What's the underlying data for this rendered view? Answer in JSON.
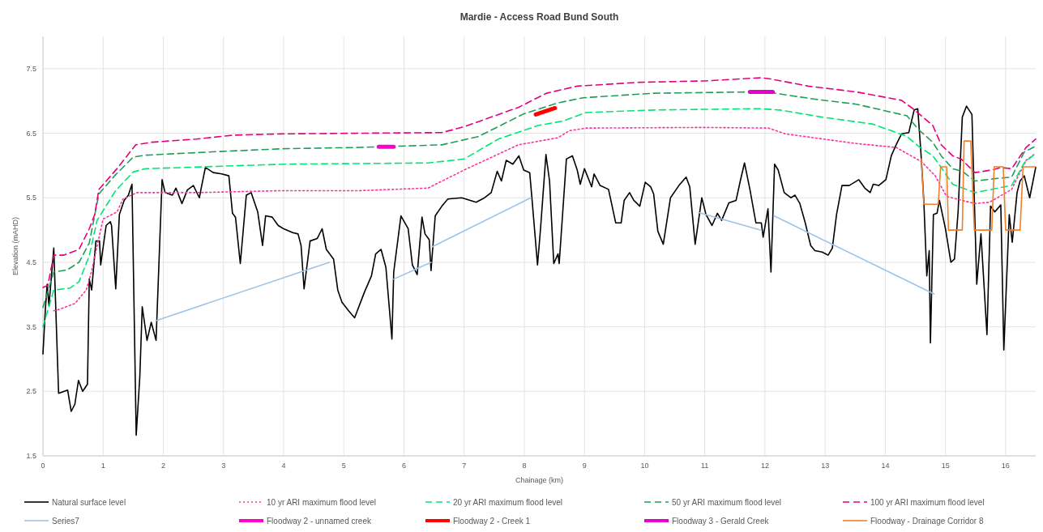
{
  "chart_data": {
    "type": "line",
    "title": "Mardie - Access Road Bund South",
    "xlabel": "Chainage (km)",
    "ylabel": "Elevation (mAHD)",
    "xlim": [
      0,
      16.5
    ],
    "xticks": [
      0,
      1,
      2,
      3,
      4,
      5,
      6,
      7,
      8,
      9,
      10,
      11,
      12,
      13,
      14,
      15,
      16
    ],
    "ylim": [
      1.5,
      8
    ],
    "yticks": [
      1.5,
      2.5,
      3.5,
      4.5,
      5.5,
      6.5,
      7.5
    ],
    "grid": true,
    "legend": "bottom",
    "series": [
      {
        "name": "Natural surface level",
        "color": "#000000",
        "line_style": "solid",
        "x": [
          0,
          0.04,
          0.07,
          0.1,
          0.18,
          0.26,
          0.41,
          0.47,
          0.53,
          0.59,
          0.66,
          0.74,
          0.77,
          0.81,
          0.88,
          0.94,
          0.96,
          1.05,
          1.12,
          1.14,
          1.21,
          1.27,
          1.35,
          1.42,
          1.48,
          1.55,
          1.61,
          1.65,
          1.73,
          1.8,
          1.88,
          1.98,
          2.03,
          2.15,
          2.21,
          2.31,
          2.4,
          2.5,
          2.6,
          2.63,
          2.7,
          2.83,
          2.97,
          3.09,
          3.15,
          3.2,
          3.28,
          3.38,
          3.46,
          3.57,
          3.65,
          3.7,
          3.81,
          3.91,
          4.0,
          4.15,
          4.24,
          4.29,
          4.34,
          4.44,
          4.56,
          4.64,
          4.71,
          4.83,
          4.9,
          4.97,
          5.08,
          5.18,
          5.34,
          5.46,
          5.53,
          5.62,
          5.7,
          5.8,
          5.83,
          5.95,
          6.07,
          6.14,
          6.22,
          6.3,
          6.35,
          6.42,
          6.45,
          6.52,
          6.63,
          6.73,
          6.96,
          7.2,
          7.34,
          7.45,
          7.55,
          7.62,
          7.7,
          7.81,
          7.91,
          7.99,
          8.09,
          8.13,
          8.22,
          8.27,
          8.36,
          8.42,
          8.49,
          8.56,
          8.58,
          8.7,
          8.8,
          8.88,
          8.93,
          9.0,
          9.12,
          9.16,
          9.26,
          9.4,
          9.52,
          9.61,
          9.66,
          9.75,
          9.82,
          9.92,
          10.01,
          10.1,
          10.15,
          10.22,
          10.31,
          10.43,
          10.57,
          10.69,
          10.75,
          10.84,
          10.95,
          11.02,
          11.12,
          11.21,
          11.28,
          11.4,
          11.52,
          11.59,
          11.66,
          11.75,
          11.85,
          11.94,
          11.97,
          12.05,
          12.1,
          12.16,
          12.22,
          12.32,
          12.43,
          12.5,
          12.58,
          12.67,
          12.76,
          12.83,
          12.95,
          13.05,
          13.12,
          13.19,
          13.28,
          13.4,
          13.56,
          13.66,
          13.75,
          13.8,
          13.89,
          14.01,
          14.1,
          14.18,
          14.27,
          14.39,
          14.48,
          14.54,
          14.59,
          14.64,
          14.69,
          14.73,
          14.75,
          14.8,
          14.86,
          14.9,
          15.0,
          15.09,
          15.15,
          15.21,
          15.28,
          15.35,
          15.44,
          15.52,
          15.59,
          15.69,
          15.75,
          15.82,
          15.92,
          15.97,
          16.06,
          16.11,
          16.19,
          16.24,
          16.31,
          16.4,
          16.5
        ],
        "values": [
          3.08,
          3.77,
          4.16,
          3.83,
          4.72,
          2.47,
          2.52,
          2.19,
          2.3,
          2.67,
          2.5,
          2.61,
          4.24,
          4.07,
          4.83,
          4.83,
          4.46,
          5.07,
          5.13,
          5.07,
          4.09,
          5.24,
          5.46,
          5.54,
          5.71,
          1.82,
          2.73,
          3.81,
          3.29,
          3.57,
          3.29,
          5.78,
          5.58,
          5.54,
          5.65,
          5.41,
          5.62,
          5.69,
          5.5,
          5.65,
          5.97,
          5.89,
          5.87,
          5.84,
          5.26,
          5.2,
          4.48,
          5.54,
          5.58,
          5.28,
          4.76,
          5.22,
          5.2,
          5.07,
          5.02,
          4.96,
          4.94,
          4.76,
          4.09,
          4.83,
          4.87,
          5.02,
          4.7,
          4.55,
          4.07,
          3.88,
          3.75,
          3.64,
          4.03,
          4.29,
          4.63,
          4.7,
          4.42,
          3.31,
          4.35,
          5.22,
          5.02,
          4.46,
          4.31,
          5.2,
          4.94,
          4.85,
          4.37,
          5.22,
          5.37,
          5.48,
          5.5,
          5.43,
          5.5,
          5.58,
          5.91,
          5.76,
          6.08,
          6.02,
          6.15,
          5.93,
          5.89,
          5.46,
          4.46,
          5.02,
          6.17,
          5.76,
          4.48,
          4.63,
          4.48,
          6.1,
          6.15,
          5.93,
          5.71,
          5.95,
          5.67,
          5.87,
          5.69,
          5.63,
          5.11,
          5.11,
          5.46,
          5.58,
          5.46,
          5.37,
          5.74,
          5.67,
          5.56,
          4.98,
          4.78,
          5.5,
          5.69,
          5.82,
          5.67,
          4.78,
          5.5,
          5.24,
          5.07,
          5.26,
          5.15,
          5.42,
          5.46,
          5.76,
          6.04,
          5.63,
          5.11,
          5.11,
          4.89,
          5.33,
          4.35,
          6.02,
          5.93,
          5.58,
          5.5,
          5.54,
          5.41,
          5.11,
          4.76,
          4.68,
          4.66,
          4.61,
          4.72,
          5.24,
          5.69,
          5.69,
          5.78,
          5.65,
          5.58,
          5.71,
          5.69,
          5.78,
          6.15,
          6.32,
          6.49,
          6.51,
          6.86,
          6.88,
          6.23,
          5.46,
          4.29,
          4.68,
          3.25,
          5.24,
          5.26,
          5.46,
          5.02,
          4.5,
          4.55,
          5.28,
          6.75,
          6.92,
          6.79,
          4.16,
          4.94,
          3.38,
          5.37,
          5.28,
          5.39,
          3.14,
          5.24,
          4.81,
          5.58,
          5.76,
          5.84,
          5.5,
          5.97
        ]
      },
      {
        "name": "10 yr ARI maximum flood level",
        "color": "#ff3399",
        "line_style": "dotted",
        "x": [
          0.18,
          0.27,
          0.53,
          0.72,
          0.81,
          1.0,
          1.23,
          1.33,
          1.56,
          2.55,
          3.96,
          5.25,
          6.4,
          7.0,
          7.9,
          8.56,
          8.75,
          9.03,
          10.98,
          12.06,
          12.34,
          13.52,
          14.18,
          14.6,
          14.83,
          15.02,
          15.49,
          15.73,
          16.1,
          16.34,
          16.5
        ],
        "values": [
          3.75,
          3.77,
          3.86,
          4.07,
          4.37,
          5.17,
          5.28,
          5.48,
          5.58,
          5.58,
          5.61,
          5.61,
          5.65,
          5.93,
          6.32,
          6.43,
          6.54,
          6.58,
          6.59,
          6.58,
          6.49,
          6.34,
          6.28,
          6.06,
          5.84,
          5.52,
          5.41,
          5.43,
          5.63,
          6.08,
          6.19
        ]
      },
      {
        "name": "20 yr ARI maximum flood level",
        "color": "#00e676",
        "line_style": "dashed",
        "x": [
          0,
          0.18,
          0.45,
          0.6,
          0.77,
          0.9,
          1.2,
          1.5,
          1.7,
          3,
          4,
          5.25,
          6.4,
          7.0,
          7.57,
          8.23,
          8.65,
          9.02,
          10.15,
          10.98,
          11.92,
          12.25,
          12.95,
          13.8,
          14.36,
          14.55,
          14.79,
          14.93,
          15.12,
          15.49,
          15.87,
          16.1,
          16.31,
          16.5
        ],
        "values": [
          3.5,
          4.07,
          4.1,
          4.2,
          4.6,
          5.15,
          5.6,
          5.9,
          5.95,
          5.99,
          6.02,
          6.03,
          6.04,
          6.1,
          6.41,
          6.62,
          6.69,
          6.82,
          6.86,
          6.87,
          6.88,
          6.86,
          6.75,
          6.64,
          6.45,
          6.3,
          6.15,
          5.97,
          5.71,
          5.58,
          5.65,
          5.69,
          6.04,
          6.19
        ]
      },
      {
        "name": "50 yr ARI maximum flood level",
        "color": "#1e9e5a",
        "line_style": "dashed",
        "x": [
          0,
          0.18,
          0.4,
          0.6,
          0.77,
          0.93,
          1.2,
          1.5,
          1.7,
          3,
          4,
          5.25,
          6.63,
          7.24,
          7.99,
          8.56,
          8.98,
          10.15,
          10.98,
          11.73,
          12.1,
          12.81,
          13.52,
          14.36,
          14.55,
          14.79,
          14.93,
          15.12,
          15.28,
          15.49,
          15.87,
          16.1,
          16.31,
          16.5
        ],
        "values": [
          3.8,
          4.35,
          4.38,
          4.5,
          4.8,
          5.56,
          5.85,
          6.13,
          6.16,
          6.22,
          6.26,
          6.28,
          6.32,
          6.45,
          6.8,
          6.97,
          7.05,
          7.12,
          7.13,
          7.14,
          7.13,
          7.03,
          6.95,
          6.77,
          6.56,
          6.36,
          6.15,
          5.95,
          5.91,
          5.76,
          5.8,
          5.82,
          6.21,
          6.3
        ]
      },
      {
        "name": "100 yr ARI maximum flood level",
        "color": "#e6007e",
        "line_style": "dashed",
        "x": [
          0,
          0.08,
          0.18,
          0.34,
          0.6,
          0.77,
          0.86,
          0.93,
          1.23,
          1.54,
          1.8,
          2.55,
          3.16,
          3.96,
          5.25,
          6.63,
          7.0,
          7.9,
          8.37,
          8.88,
          9.92,
          10.98,
          11.94,
          12.1,
          12.72,
          13.52,
          14.27,
          14.46,
          14.79,
          14.93,
          15.12,
          15.26,
          15.49,
          15.77,
          15.92,
          16.1,
          16.34,
          16.5
        ],
        "values": [
          4.11,
          4.14,
          4.61,
          4.61,
          4.7,
          5.02,
          5.24,
          5.63,
          5.95,
          6.32,
          6.36,
          6.41,
          6.47,
          6.49,
          6.5,
          6.51,
          6.6,
          6.9,
          7.12,
          7.23,
          7.29,
          7.31,
          7.36,
          7.34,
          7.23,
          7.14,
          7.01,
          6.88,
          6.62,
          6.32,
          6.15,
          6.1,
          5.89,
          5.93,
          5.97,
          5.95,
          6.28,
          6.41
        ]
      },
      {
        "name": "Series7",
        "color": "#9dc3e6",
        "line_style": "solid",
        "x": [
          1.89,
          4.76,
          null,
          5.83,
          6.45,
          null,
          6.47,
          8.11,
          null,
          10.9,
          11.92,
          null,
          12.15,
          14.81
        ],
        "values": [
          3.6,
          4.5,
          null,
          4.24,
          4.5,
          null,
          4.74,
          5.5,
          null,
          5.27,
          5.0,
          null,
          5.22,
          4.01
        ]
      },
      {
        "name": "Floodway 2 - unnamed creek",
        "color": "#ff00cc",
        "line_style": "solid",
        "x": [
          5.58,
          5.83
        ],
        "values": [
          6.29,
          6.29
        ]
      },
      {
        "name": "Floodway 2 - Creek 1",
        "color": "#ff0000",
        "line_style": "solid",
        "x": [
          8.19,
          8.51
        ],
        "values": [
          6.79,
          6.89
        ]
      },
      {
        "name": "Floodway 3 - Gerald Creek",
        "color": "#e600cc",
        "line_style": "solid",
        "x": [
          11.75,
          12.13
        ],
        "values": [
          7.14,
          7.14
        ]
      },
      {
        "name": "Floodway - Drainage Corridor 8",
        "color": "#f07f2a",
        "line_style": "solid",
        "x": [
          14.6,
          14.64,
          14.88,
          14.92,
          15.02,
          15.05,
          15.28,
          15.31,
          15.42,
          15.48,
          15.77,
          15.81,
          15.96,
          16.0,
          16.24,
          16.29,
          16.5
        ],
        "values": [
          6.1,
          5.4,
          5.4,
          5.98,
          5.98,
          5.0,
          5.0,
          6.38,
          6.38,
          5.0,
          5.0,
          5.98,
          5.98,
          5.0,
          5.0,
          5.98,
          5.98
        ]
      }
    ]
  }
}
